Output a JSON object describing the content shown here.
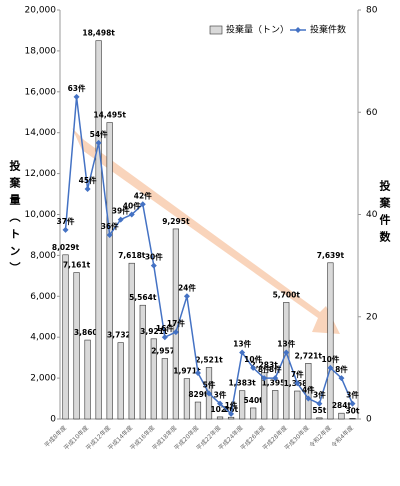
{
  "chart_data": {
    "type": "bar",
    "categories": [
      "平成8年度",
      null,
      "平成10年度",
      null,
      "平成12年度",
      null,
      "平成14年度",
      null,
      "平成16年度",
      null,
      "平成18年度",
      null,
      "平成20年度",
      null,
      "平成22年度",
      null,
      "平成24年度",
      null,
      "平成26年度",
      null,
      "平成28年度",
      null,
      "平成30年度",
      null,
      "令和2年度",
      null,
      "令和4年度"
    ],
    "series": [
      {
        "name": "投棄量（トン）",
        "color": "#d9d9d9",
        "values": [
          8029,
          7161,
          3860,
          18498,
          14495,
          3732,
          7618,
          5564,
          3921,
          2957,
          9295,
          1971,
          829,
          2521,
          102,
          86,
          1383,
          540,
          2283,
          1395,
          5700,
          1368,
          2721,
          55,
          7639,
          284,
          30
        ],
        "value_labels": [
          "8,029t",
          "7,161t",
          "3,860t",
          "18,498t",
          "14,495t",
          "3,732t",
          "7,618t",
          "5,564t",
          "3,921t",
          "2,957t",
          "9,295t",
          "1,971t",
          "829t",
          "2,521t",
          "102t",
          "86t",
          "1,383t",
          "540t",
          "2,283t",
          "1,395t",
          "5,700t",
          "1,368t",
          "2,721t",
          "55t",
          "7,639t",
          "284t",
          "30t"
        ]
      },
      {
        "name": "投棄件数",
        "color": "#4472c4",
        "axis": "y2",
        "values": [
          37,
          63,
          45,
          54,
          36,
          39,
          40,
          42,
          30,
          16,
          17,
          24,
          9,
          5,
          3,
          1,
          13,
          10,
          8,
          8,
          13,
          7,
          4,
          3,
          10,
          8,
          3
        ],
        "value_labels": [
          "37件",
          "63件",
          "45件",
          "54件",
          "36件",
          "39件",
          "40件",
          "42件",
          "30件",
          "16件",
          "17件",
          "24件",
          null,
          "5件",
          "3件",
          "1件",
          "13件",
          "10件",
          "8件",
          "8件",
          "13件",
          "7件",
          "4件",
          "3件",
          "10件",
          "8件",
          "3件"
        ]
      }
    ],
    "ylabel": "投棄量（トン）",
    "y2label": "投棄件数",
    "ylim": [
      0,
      20000
    ],
    "yticks": [
      0,
      {
        "value": 2000,
        "label": "2,000"
      },
      {
        "value": 4000,
        "label": "4,000"
      },
      {
        "value": 6000,
        "label": "6,000"
      },
      {
        "value": 8000,
        "label": "8,000"
      },
      {
        "value": 10000,
        "label": "10,000"
      },
      {
        "value": 12000,
        "label": "12,000"
      },
      {
        "value": 14000,
        "label": "14,000"
      },
      {
        "value": 16000,
        "label": "16,000"
      },
      {
        "value": 18000,
        "label": "18,000"
      },
      {
        "value": 20000,
        "label": "20,000"
      }
    ],
    "y2lim": [
      0,
      80
    ],
    "y2ticks": [
      0,
      20,
      40,
      60,
      80
    ],
    "legend": "top-right"
  }
}
